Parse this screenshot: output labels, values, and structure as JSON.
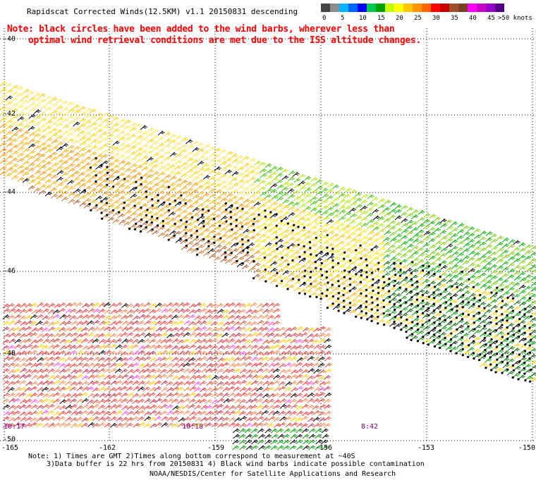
{
  "title": "Rapidscat Corrected Winds(12.5KM) v1.1 20150831 descending",
  "note_line1": "Note: black circles have been added to the wind barbs, wherever less than",
  "note_line2": "optimal wind retrieval conditions are met due to the ISS altitude changes.",
  "legend": {
    "unit_label": ">50 knots",
    "bins": [
      {
        "label": "0",
        "color": "#444444"
      },
      {
        "label": "",
        "color": "#8c8c8c"
      },
      {
        "label": "5",
        "color": "#00b4ff"
      },
      {
        "label": "",
        "color": "#0064ff"
      },
      {
        "label": "10",
        "color": "#0000ff"
      },
      {
        "label": "",
        "color": "#00c850"
      },
      {
        "label": "15",
        "color": "#00a000"
      },
      {
        "label": "",
        "color": "#c8ff00"
      },
      {
        "label": "20",
        "color": "#ffff00"
      },
      {
        "label": "",
        "color": "#ffc800"
      },
      {
        "label": "25",
        "color": "#ff9600"
      },
      {
        "label": "",
        "color": "#ff6400"
      },
      {
        "label": "30",
        "color": "#ff0000"
      },
      {
        "label": "",
        "color": "#c80000"
      },
      {
        "label": "35",
        "color": "#a05028"
      },
      {
        "label": "",
        "color": "#784020"
      },
      {
        "label": "40",
        "color": "#ff00ff"
      },
      {
        "label": "",
        "color": "#c800c8"
      },
      {
        "label": "45",
        "color": "#9600c8"
      },
      {
        "label": "",
        "color": "#500080"
      }
    ]
  },
  "lat_labels": [
    {
      "label": "-40",
      "value": -40
    },
    {
      "label": "-42",
      "value": -42
    },
    {
      "label": "-44",
      "value": -44
    },
    {
      "label": "-46",
      "value": -46
    },
    {
      "label": "-48",
      "value": -48
    },
    {
      "label": "-50",
      "value": -50
    }
  ],
  "lon_labels": [
    {
      "label": "-165",
      "value": -165
    },
    {
      "label": "-162",
      "value": -162
    },
    {
      "label": "-159",
      "value": -159
    },
    {
      "label": "-156",
      "value": -156
    },
    {
      "label": "-153",
      "value": -153
    },
    {
      "label": "-150",
      "value": -150
    }
  ],
  "time_labels": [
    "10:17",
    "10:18",
    "8:42"
  ],
  "footer_line1": "Note: 1) Times are GMT 2)Times along bottom correspond to measurement at ~40S",
  "footer_line2": "3)Data buffer is 22 hrs from 20150831 4) Black wind barbs indicate possible contamination",
  "footer_line3": "NOAA/NESDIS/Center for Satellite Applications and Research"
}
